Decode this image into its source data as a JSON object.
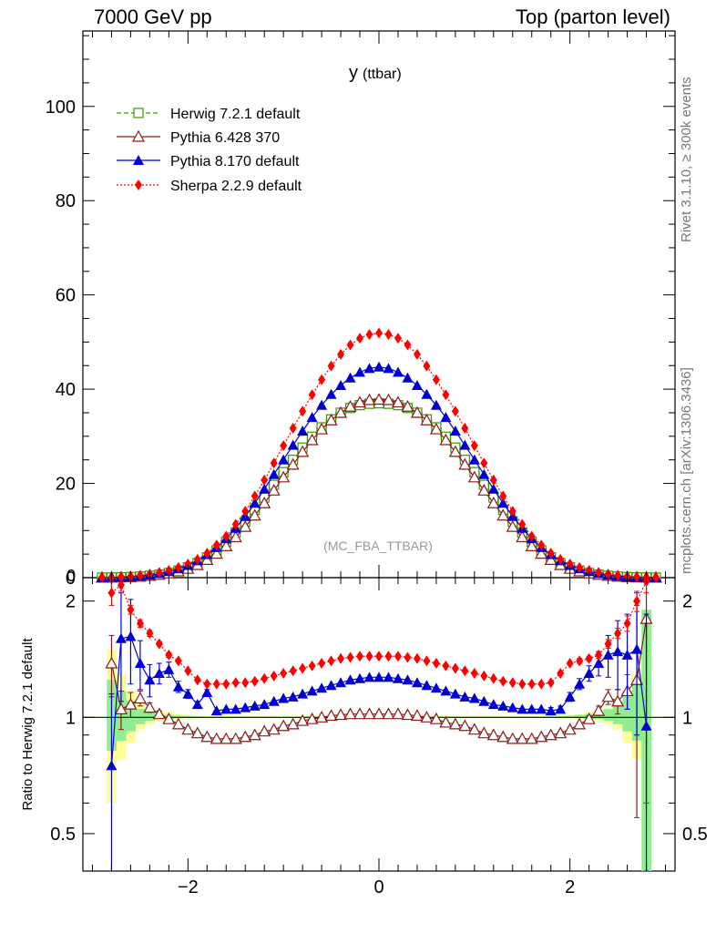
{
  "header": {
    "left": "7000 GeV pp",
    "right": "Top (parton level)"
  },
  "side_text": {
    "rivet": "Rivet 3.1.10, ≥ 300k events",
    "source": "mcplots.cern.ch [arXiv:1306.3436]"
  },
  "colors": {
    "herwig": "#339a00",
    "pythia6": "#8b1a1a",
    "pythia8": "#0000d5",
    "sherpa": "#ff0000",
    "band_green": "#90ee90",
    "band_yellow": "#ffff99"
  },
  "chart_data": [
    {
      "type": "line",
      "panel": "main",
      "title": "y",
      "title_suffix": "(ttbar)",
      "watermark": "(MC_FBA_TTBAR)",
      "xlabel": "",
      "ylabel": "",
      "xlim": [
        -3.1,
        3.1
      ],
      "ylim": [
        0,
        116
      ],
      "yticks": [
        0,
        20,
        40,
        60,
        80,
        100
      ],
      "ytick_labels": [
        "0",
        "20",
        "40",
        "60",
        "80",
        "100"
      ],
      "legend": {
        "placement": "top-left",
        "entries": [
          "Herwig 7.2.1 default",
          "Pythia 6.428 370",
          "Pythia 8.170 default",
          "Sherpa 2.2.9 default"
        ]
      },
      "x": [
        -2.9,
        -2.8,
        -2.7,
        -2.6,
        -2.5,
        -2.4,
        -2.3,
        -2.2,
        -2.1,
        -2.0,
        -1.9,
        -1.8,
        -1.7,
        -1.6,
        -1.5,
        -1.4,
        -1.3,
        -1.2,
        -1.1,
        -1.0,
        -0.9,
        -0.8,
        -0.7,
        -0.6,
        -0.5,
        -0.4,
        -0.3,
        -0.2,
        -0.1,
        0.0,
        0.1,
        0.2,
        0.3,
        0.4,
        0.5,
        0.6,
        0.7,
        0.8,
        0.9,
        1.0,
        1.1,
        1.2,
        1.3,
        1.4,
        1.5,
        1.6,
        1.7,
        1.8,
        1.9,
        2.0,
        2.1,
        2.2,
        2.3,
        2.4,
        2.5,
        2.6,
        2.7,
        2.8,
        2.9
      ],
      "series": [
        {
          "name": "Herwig 7.2.1 default",
          "marker": "open-square",
          "line": "dashed",
          "values": [
            0.02,
            0.04,
            0.08,
            0.14,
            0.24,
            0.4,
            0.65,
            1.0,
            1.5,
            2.2,
            3.1,
            4.3,
            5.8,
            7.6,
            9.6,
            11.9,
            14.4,
            17.0,
            19.7,
            22.4,
            25.0,
            27.6,
            29.9,
            31.9,
            33.6,
            35.0,
            36.0,
            36.6,
            36.9,
            37.0,
            36.9,
            36.6,
            36.0,
            35.0,
            33.6,
            31.9,
            29.9,
            27.6,
            25.0,
            22.4,
            19.7,
            17.0,
            14.4,
            11.9,
            9.6,
            7.6,
            5.8,
            4.3,
            3.1,
            2.2,
            1.5,
            1.0,
            0.65,
            0.4,
            0.24,
            0.14,
            0.08,
            0.04,
            0.02
          ]
        },
        {
          "name": "Pythia 6.428 370",
          "marker": "open-triangle",
          "line": "solid",
          "values": [
            0.03,
            0.05,
            0.09,
            0.15,
            0.25,
            0.4,
            0.62,
            0.93,
            1.35,
            1.9,
            2.7,
            3.8,
            5.1,
            6.7,
            8.6,
            10.8,
            13.2,
            15.8,
            18.5,
            21.3,
            24.0,
            26.7,
            29.2,
            31.5,
            33.4,
            35.0,
            36.3,
            37.2,
            37.7,
            37.8,
            37.7,
            37.2,
            36.3,
            35.0,
            33.4,
            31.5,
            29.2,
            26.7,
            24.0,
            21.3,
            18.5,
            15.8,
            13.2,
            10.8,
            8.6,
            6.7,
            5.1,
            3.8,
            2.7,
            1.9,
            1.35,
            0.93,
            0.62,
            0.4,
            0.25,
            0.15,
            0.09,
            0.05,
            0.03
          ]
        },
        {
          "name": "Pythia 8.170 default",
          "marker": "filled-triangle",
          "line": "solid",
          "values": [
            0.02,
            0.05,
            0.11,
            0.2,
            0.34,
            0.55,
            0.86,
            1.3,
            1.9,
            2.6,
            3.6,
            4.9,
            6.4,
            8.3,
            10.5,
            13.0,
            15.8,
            18.8,
            21.9,
            25.0,
            28.1,
            31.1,
            34.0,
            36.6,
            38.9,
            40.8,
            42.4,
            43.6,
            44.4,
            44.7,
            44.4,
            43.6,
            42.4,
            40.8,
            38.9,
            36.6,
            34.0,
            31.1,
            28.1,
            25.0,
            21.9,
            18.8,
            15.8,
            13.0,
            10.5,
            8.3,
            6.4,
            4.9,
            3.6,
            2.6,
            1.9,
            1.3,
            0.86,
            0.55,
            0.34,
            0.2,
            0.11,
            0.05,
            0.02
          ]
        },
        {
          "name": "Sherpa 2.2.9 default",
          "marker": "filled-diamond",
          "line": "dotted",
          "values": [
            0.04,
            0.09,
            0.18,
            0.31,
            0.5,
            0.76,
            1.1,
            1.55,
            2.15,
            2.9,
            3.9,
            5.2,
            6.9,
            8.8,
            11.3,
            14.1,
            17.3,
            20.7,
            24.3,
            28.0,
            31.7,
            35.3,
            38.8,
            42.0,
            44.9,
            47.4,
            49.4,
            50.8,
            51.6,
            51.9,
            51.6,
            50.8,
            49.4,
            47.4,
            44.9,
            42.0,
            38.8,
            35.3,
            31.7,
            28.0,
            24.3,
            20.7,
            17.3,
            14.1,
            11.3,
            8.8,
            6.9,
            5.2,
            3.9,
            2.9,
            2.15,
            1.55,
            1.1,
            0.76,
            0.5,
            0.31,
            0.18,
            0.09,
            0.04
          ]
        }
      ]
    },
    {
      "type": "line",
      "panel": "ratio",
      "title": "",
      "xlabel": "",
      "ylabel": "Ratio to Herwig 7.2.1 default",
      "scale": "log",
      "xlim": [
        -3.1,
        3.1
      ],
      "ylim": [
        0.4,
        2.3
      ],
      "xticks": [
        -2,
        0,
        2
      ],
      "xtick_labels": [
        "−2",
        "0",
        "2"
      ],
      "yticks": [
        0.5,
        1,
        2
      ],
      "ytick_labels": [
        "0.5",
        "1",
        "2"
      ],
      "reference_line": 1,
      "x": [
        -2.8,
        -2.7,
        -2.6,
        -2.5,
        -2.4,
        -2.3,
        -2.2,
        -2.1,
        -2.0,
        -1.9,
        -1.8,
        -1.7,
        -1.6,
        -1.5,
        -1.4,
        -1.3,
        -1.2,
        -1.1,
        -1.0,
        -0.9,
        -0.8,
        -0.7,
        -0.6,
        -0.5,
        -0.4,
        -0.3,
        -0.2,
        -0.1,
        0.0,
        0.1,
        0.2,
        0.3,
        0.4,
        0.5,
        0.6,
        0.7,
        0.8,
        0.9,
        1.0,
        1.1,
        1.2,
        1.3,
        1.4,
        1.5,
        1.6,
        1.7,
        1.8,
        1.9,
        2.0,
        2.1,
        2.2,
        2.3,
        2.4,
        2.5,
        2.6,
        2.7,
        2.8
      ],
      "uncertainty_bands": {
        "green": {
          "lower": [
            0.82,
            0.87,
            0.92,
            0.96,
            0.98,
            0.99,
            0.99,
            0.995,
            0.997,
            0.998,
            0.998,
            0.998,
            0.998,
            0.998,
            0.998,
            0.998,
            0.998,
            0.998,
            0.998,
            0.998,
            0.998,
            0.998,
            0.998,
            0.998,
            0.998,
            0.998,
            0.998,
            0.998,
            0.998,
            0.998,
            0.998,
            0.998,
            0.998,
            0.998,
            0.998,
            0.998,
            0.998,
            0.998,
            0.998,
            0.998,
            0.998,
            0.998,
            0.998,
            0.998,
            0.998,
            0.998,
            0.998,
            0.998,
            0.997,
            0.995,
            0.99,
            0.99,
            0.98,
            0.96,
            0.92,
            0.87,
            0.35
          ],
          "upper": [
            1.25,
            1.17,
            1.1,
            1.05,
            1.03,
            1.02,
            1.015,
            1.01,
            1.008,
            1.006,
            1.005,
            1.004,
            1.004,
            1.004,
            1.004,
            1.004,
            1.004,
            1.004,
            1.004,
            1.004,
            1.004,
            1.004,
            1.004,
            1.004,
            1.004,
            1.004,
            1.004,
            1.004,
            1.004,
            1.004,
            1.004,
            1.004,
            1.004,
            1.004,
            1.004,
            1.004,
            1.004,
            1.004,
            1.004,
            1.004,
            1.004,
            1.004,
            1.004,
            1.004,
            1.004,
            1.005,
            1.006,
            1.008,
            1.01,
            1.015,
            1.02,
            1.03,
            1.05,
            1.1,
            1.17,
            1.25,
            1.9
          ]
        },
        "yellow": {
          "lower": [
            0.6,
            0.78,
            0.86,
            0.93,
            0.96,
            0.975,
            0.985,
            0.99,
            0.993,
            0.995,
            0.996,
            0.996,
            0.996,
            0.996,
            0.996,
            0.996,
            0.996,
            0.996,
            0.996,
            0.996,
            0.996,
            0.996,
            0.996,
            0.996,
            0.996,
            0.996,
            0.996,
            0.996,
            0.996,
            0.996,
            0.996,
            0.996,
            0.996,
            0.996,
            0.996,
            0.996,
            0.996,
            0.996,
            0.996,
            0.996,
            0.996,
            0.996,
            0.996,
            0.996,
            0.996,
            0.996,
            0.996,
            0.995,
            0.993,
            0.99,
            0.985,
            0.975,
            0.96,
            0.93,
            0.86,
            0.78,
            0.52
          ],
          "upper": [
            1.5,
            1.3,
            1.17,
            1.09,
            1.06,
            1.04,
            1.03,
            1.02,
            1.015,
            1.012,
            1.01,
            1.008,
            1.008,
            1.008,
            1.008,
            1.008,
            1.008,
            1.008,
            1.008,
            1.008,
            1.008,
            1.008,
            1.008,
            1.008,
            1.008,
            1.008,
            1.008,
            1.008,
            1.008,
            1.008,
            1.008,
            1.008,
            1.008,
            1.008,
            1.008,
            1.008,
            1.008,
            1.008,
            1.008,
            1.008,
            1.008,
            1.008,
            1.008,
            1.008,
            1.008,
            1.008,
            1.01,
            1.012,
            1.015,
            1.02,
            1.03,
            1.04,
            1.06,
            1.09,
            1.17,
            1.3,
            1.5
          ]
        }
      },
      "series": [
        {
          "name": "Pythia 6.428 370",
          "marker": "open-triangle",
          "line": "solid",
          "values": [
            1.38,
            1.05,
            1.08,
            1.12,
            1.06,
            1.02,
            0.99,
            0.96,
            0.93,
            0.91,
            0.89,
            0.88,
            0.88,
            0.88,
            0.89,
            0.9,
            0.92,
            0.93,
            0.95,
            0.96,
            0.98,
            0.99,
            1.0,
            1.01,
            1.015,
            1.02,
            1.02,
            1.02,
            1.02,
            1.02,
            1.02,
            1.015,
            1.01,
            1.0,
            0.99,
            0.97,
            0.96,
            0.95,
            0.93,
            0.91,
            0.9,
            0.89,
            0.88,
            0.88,
            0.88,
            0.89,
            0.9,
            0.91,
            0.93,
            0.96,
            0.99,
            1.04,
            1.13,
            1.1,
            1.17,
            1.25,
            1.8
          ],
          "errors": [
            0.25,
            0.12,
            0.08,
            0.05,
            0.03,
            0.02,
            0.01,
            0.01,
            0.01,
            0.01,
            0.01,
            0.01,
            0.01,
            0.01,
            0.01,
            0.01,
            0.01,
            0.01,
            0.01,
            0.01,
            0.01,
            0.01,
            0.01,
            0.01,
            0.01,
            0.01,
            0.01,
            0.01,
            0.01,
            0.01,
            0.01,
            0.01,
            0.01,
            0.01,
            0.01,
            0.01,
            0.01,
            0.01,
            0.01,
            0.01,
            0.01,
            0.01,
            0.01,
            0.01,
            0.01,
            0.01,
            0.01,
            0.01,
            0.01,
            0.01,
            0.02,
            0.03,
            0.05,
            0.08,
            0.12,
            0.7,
            1.2
          ]
        },
        {
          "name": "Pythia 8.170 default",
          "marker": "filled-triangle",
          "line": "solid",
          "values": [
            0.75,
            1.6,
            1.62,
            1.38,
            1.25,
            1.3,
            1.33,
            1.2,
            1.15,
            1.08,
            1.16,
            1.04,
            1.05,
            1.05,
            1.06,
            1.07,
            1.08,
            1.1,
            1.12,
            1.13,
            1.15,
            1.17,
            1.19,
            1.21,
            1.23,
            1.25,
            1.26,
            1.27,
            1.27,
            1.27,
            1.26,
            1.25,
            1.23,
            1.21,
            1.19,
            1.17,
            1.15,
            1.13,
            1.12,
            1.1,
            1.08,
            1.07,
            1.06,
            1.05,
            1.05,
            1.05,
            1.04,
            1.05,
            1.13,
            1.22,
            1.3,
            1.38,
            1.45,
            1.48,
            1.45,
            1.5,
            0.95
          ],
          "errors": [
            0.4,
            0.5,
            0.4,
            0.2,
            0.12,
            0.08,
            0.06,
            0.04,
            0.03,
            0.02,
            0.02,
            0.01,
            0.01,
            0.01,
            0.01,
            0.01,
            0.01,
            0.01,
            0.01,
            0.01,
            0.01,
            0.01,
            0.01,
            0.01,
            0.01,
            0.01,
            0.01,
            0.01,
            0.01,
            0.01,
            0.01,
            0.01,
            0.01,
            0.01,
            0.01,
            0.01,
            0.01,
            0.01,
            0.01,
            0.01,
            0.01,
            0.01,
            0.01,
            0.01,
            0.01,
            0.01,
            0.02,
            0.02,
            0.03,
            0.04,
            0.06,
            0.1,
            0.18,
            0.3,
            0.4,
            0.6,
            0.9
          ]
        },
        {
          "name": "Sherpa 2.2.9 default",
          "marker": "filled-diamond",
          "line": "dotted",
          "values": [
            2.1,
            2.2,
            1.9,
            1.75,
            1.65,
            1.55,
            1.45,
            1.4,
            1.32,
            1.25,
            1.22,
            1.22,
            1.22,
            1.23,
            1.23,
            1.24,
            1.26,
            1.28,
            1.3,
            1.32,
            1.34,
            1.36,
            1.38,
            1.4,
            1.42,
            1.43,
            1.44,
            1.44,
            1.44,
            1.44,
            1.44,
            1.43,
            1.42,
            1.4,
            1.38,
            1.36,
            1.34,
            1.32,
            1.3,
            1.28,
            1.26,
            1.24,
            1.23,
            1.22,
            1.22,
            1.22,
            1.23,
            1.3,
            1.38,
            1.4,
            1.42,
            1.45,
            1.55,
            1.65,
            1.75,
            2.0,
            2.25
          ],
          "errors": [
            0.15,
            0.08,
            0.05,
            0.04,
            0.03,
            0.02,
            0.02,
            0.01,
            0.01,
            0.01,
            0.01,
            0.01,
            0.01,
            0.01,
            0.01,
            0.01,
            0.01,
            0.01,
            0.01,
            0.01,
            0.01,
            0.01,
            0.01,
            0.01,
            0.01,
            0.01,
            0.01,
            0.01,
            0.01,
            0.01,
            0.01,
            0.01,
            0.01,
            0.01,
            0.01,
            0.01,
            0.01,
            0.01,
            0.01,
            0.01,
            0.01,
            0.01,
            0.01,
            0.01,
            0.01,
            0.01,
            0.01,
            0.01,
            0.01,
            0.02,
            0.02,
            0.03,
            0.04,
            0.05,
            0.08,
            0.12,
            0.15
          ]
        }
      ]
    }
  ]
}
